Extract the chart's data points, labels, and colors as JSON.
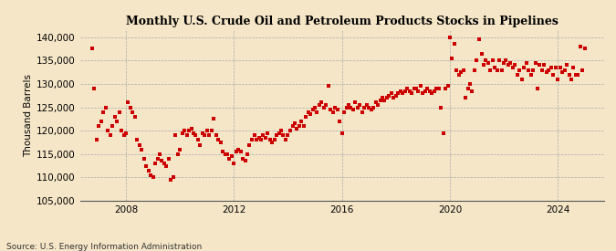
{
  "title": "Monthly U.S. Crude Oil and Petroleum Products Stocks in Pipelines",
  "ylabel": "Thousand Barrels",
  "source": "Source: U.S. Energy Information Administration",
  "background_color": "#f5e6c8",
  "plot_bg_color": "#f5e6c8",
  "marker_color": "#cc0000",
  "xlim_start": 2006.3,
  "xlim_end": 2025.7,
  "ylim_bottom": 105000,
  "ylim_top": 141500,
  "yticks": [
    105000,
    110000,
    115000,
    120000,
    125000,
    130000,
    135000,
    140000
  ],
  "xticks": [
    2008,
    2012,
    2016,
    2020,
    2024
  ],
  "data": [
    [
      2006.75,
      137500
    ],
    [
      2006.83,
      129000
    ],
    [
      2006.92,
      118000
    ],
    [
      2007.0,
      121000
    ],
    [
      2007.08,
      122000
    ],
    [
      2007.17,
      124000
    ],
    [
      2007.25,
      125000
    ],
    [
      2007.33,
      120000
    ],
    [
      2007.42,
      119000
    ],
    [
      2007.5,
      121000
    ],
    [
      2007.58,
      123000
    ],
    [
      2007.67,
      122000
    ],
    [
      2007.75,
      124000
    ],
    [
      2007.83,
      120000
    ],
    [
      2007.92,
      119000
    ],
    [
      2008.0,
      119500
    ],
    [
      2008.08,
      126000
    ],
    [
      2008.17,
      125000
    ],
    [
      2008.25,
      124000
    ],
    [
      2008.33,
      123000
    ],
    [
      2008.42,
      118000
    ],
    [
      2008.5,
      117000
    ],
    [
      2008.58,
      116000
    ],
    [
      2008.67,
      114000
    ],
    [
      2008.75,
      112500
    ],
    [
      2008.83,
      111500
    ],
    [
      2008.92,
      110500
    ],
    [
      2009.0,
      110000
    ],
    [
      2009.08,
      113000
    ],
    [
      2009.17,
      114000
    ],
    [
      2009.25,
      115000
    ],
    [
      2009.33,
      113500
    ],
    [
      2009.42,
      113000
    ],
    [
      2009.5,
      112500
    ],
    [
      2009.58,
      114000
    ],
    [
      2009.67,
      109500
    ],
    [
      2009.75,
      110000
    ],
    [
      2009.83,
      119000
    ],
    [
      2009.92,
      115000
    ],
    [
      2010.0,
      116000
    ],
    [
      2010.08,
      119500
    ],
    [
      2010.17,
      120000
    ],
    [
      2010.25,
      119000
    ],
    [
      2010.33,
      120000
    ],
    [
      2010.42,
      120500
    ],
    [
      2010.5,
      119500
    ],
    [
      2010.58,
      119000
    ],
    [
      2010.67,
      118000
    ],
    [
      2010.75,
      117000
    ],
    [
      2010.83,
      119500
    ],
    [
      2010.92,
      119000
    ],
    [
      2011.0,
      120000
    ],
    [
      2011.08,
      119000
    ],
    [
      2011.17,
      120000
    ],
    [
      2011.25,
      122500
    ],
    [
      2011.33,
      119000
    ],
    [
      2011.42,
      118000
    ],
    [
      2011.5,
      117500
    ],
    [
      2011.58,
      115500
    ],
    [
      2011.67,
      115000
    ],
    [
      2011.75,
      115000
    ],
    [
      2011.83,
      114000
    ],
    [
      2011.92,
      114500
    ],
    [
      2012.0,
      113000
    ],
    [
      2012.08,
      115500
    ],
    [
      2012.17,
      116000
    ],
    [
      2012.25,
      115500
    ],
    [
      2012.33,
      114000
    ],
    [
      2012.42,
      113500
    ],
    [
      2012.5,
      115000
    ],
    [
      2012.58,
      117000
    ],
    [
      2012.67,
      118000
    ],
    [
      2012.75,
      119000
    ],
    [
      2012.83,
      118000
    ],
    [
      2012.92,
      118500
    ],
    [
      2013.0,
      118000
    ],
    [
      2013.08,
      119000
    ],
    [
      2013.17,
      118500
    ],
    [
      2013.25,
      119500
    ],
    [
      2013.33,
      118000
    ],
    [
      2013.42,
      117500
    ],
    [
      2013.5,
      118000
    ],
    [
      2013.58,
      119000
    ],
    [
      2013.67,
      119500
    ],
    [
      2013.75,
      120000
    ],
    [
      2013.83,
      119000
    ],
    [
      2013.92,
      118000
    ],
    [
      2014.0,
      119000
    ],
    [
      2014.08,
      120000
    ],
    [
      2014.17,
      121000
    ],
    [
      2014.25,
      121500
    ],
    [
      2014.33,
      120500
    ],
    [
      2014.42,
      121000
    ],
    [
      2014.5,
      122000
    ],
    [
      2014.58,
      121000
    ],
    [
      2014.67,
      123000
    ],
    [
      2014.75,
      124000
    ],
    [
      2014.83,
      123500
    ],
    [
      2014.92,
      124500
    ],
    [
      2015.0,
      125000
    ],
    [
      2015.08,
      124000
    ],
    [
      2015.17,
      125500
    ],
    [
      2015.25,
      126000
    ],
    [
      2015.33,
      125000
    ],
    [
      2015.42,
      125500
    ],
    [
      2015.5,
      129500
    ],
    [
      2015.58,
      124500
    ],
    [
      2015.67,
      124000
    ],
    [
      2015.75,
      125000
    ],
    [
      2015.83,
      124500
    ],
    [
      2015.92,
      122000
    ],
    [
      2016.0,
      119500
    ],
    [
      2016.08,
      124000
    ],
    [
      2016.17,
      125000
    ],
    [
      2016.25,
      125500
    ],
    [
      2016.33,
      125000
    ],
    [
      2016.42,
      124500
    ],
    [
      2016.5,
      126000
    ],
    [
      2016.58,
      125000
    ],
    [
      2016.67,
      125500
    ],
    [
      2016.75,
      124000
    ],
    [
      2016.83,
      125000
    ],
    [
      2016.92,
      125500
    ],
    [
      2017.0,
      125000
    ],
    [
      2017.08,
      124500
    ],
    [
      2017.17,
      125000
    ],
    [
      2017.25,
      126000
    ],
    [
      2017.33,
      125500
    ],
    [
      2017.42,
      126500
    ],
    [
      2017.5,
      127000
    ],
    [
      2017.58,
      126500
    ],
    [
      2017.67,
      127000
    ],
    [
      2017.75,
      127500
    ],
    [
      2017.83,
      128000
    ],
    [
      2017.92,
      127000
    ],
    [
      2018.0,
      127500
    ],
    [
      2018.08,
      128000
    ],
    [
      2018.17,
      128500
    ],
    [
      2018.25,
      128000
    ],
    [
      2018.33,
      128500
    ],
    [
      2018.42,
      129000
    ],
    [
      2018.5,
      128500
    ],
    [
      2018.58,
      128000
    ],
    [
      2018.67,
      129000
    ],
    [
      2018.75,
      129000
    ],
    [
      2018.83,
      128500
    ],
    [
      2018.92,
      129500
    ],
    [
      2019.0,
      128000
    ],
    [
      2019.08,
      128500
    ],
    [
      2019.17,
      129000
    ],
    [
      2019.25,
      128500
    ],
    [
      2019.33,
      128000
    ],
    [
      2019.42,
      128500
    ],
    [
      2019.5,
      129000
    ],
    [
      2019.58,
      129000
    ],
    [
      2019.67,
      125000
    ],
    [
      2019.75,
      119500
    ],
    [
      2019.83,
      129000
    ],
    [
      2019.92,
      129500
    ],
    [
      2020.0,
      140000
    ],
    [
      2020.08,
      135500
    ],
    [
      2020.17,
      138500
    ],
    [
      2020.25,
      133000
    ],
    [
      2020.33,
      132000
    ],
    [
      2020.42,
      132500
    ],
    [
      2020.5,
      133000
    ],
    [
      2020.58,
      127000
    ],
    [
      2020.67,
      129000
    ],
    [
      2020.75,
      130000
    ],
    [
      2020.83,
      128500
    ],
    [
      2020.92,
      133000
    ],
    [
      2021.0,
      135000
    ],
    [
      2021.08,
      139500
    ],
    [
      2021.17,
      136500
    ],
    [
      2021.25,
      134000
    ],
    [
      2021.33,
      135000
    ],
    [
      2021.42,
      134500
    ],
    [
      2021.5,
      133000
    ],
    [
      2021.58,
      135000
    ],
    [
      2021.67,
      133500
    ],
    [
      2021.75,
      133000
    ],
    [
      2021.83,
      135000
    ],
    [
      2021.92,
      133000
    ],
    [
      2022.0,
      134500
    ],
    [
      2022.08,
      135000
    ],
    [
      2022.17,
      134000
    ],
    [
      2022.25,
      134500
    ],
    [
      2022.33,
      133500
    ],
    [
      2022.42,
      134000
    ],
    [
      2022.5,
      132000
    ],
    [
      2022.58,
      133000
    ],
    [
      2022.67,
      131000
    ],
    [
      2022.75,
      133500
    ],
    [
      2022.83,
      134500
    ],
    [
      2022.92,
      133000
    ],
    [
      2023.0,
      132000
    ],
    [
      2023.08,
      133000
    ],
    [
      2023.17,
      134500
    ],
    [
      2023.25,
      129000
    ],
    [
      2023.33,
      134000
    ],
    [
      2023.42,
      133000
    ],
    [
      2023.5,
      134000
    ],
    [
      2023.58,
      132500
    ],
    [
      2023.67,
      133000
    ],
    [
      2023.75,
      133500
    ],
    [
      2023.83,
      132000
    ],
    [
      2023.92,
      133500
    ],
    [
      2024.0,
      131000
    ],
    [
      2024.08,
      133500
    ],
    [
      2024.17,
      132500
    ],
    [
      2024.25,
      133000
    ],
    [
      2024.33,
      134000
    ],
    [
      2024.42,
      132000
    ],
    [
      2024.5,
      131000
    ],
    [
      2024.58,
      133500
    ],
    [
      2024.67,
      132000
    ],
    [
      2024.75,
      132000
    ],
    [
      2024.83,
      138000
    ],
    [
      2024.92,
      133000
    ],
    [
      2025.0,
      137500
    ]
  ]
}
